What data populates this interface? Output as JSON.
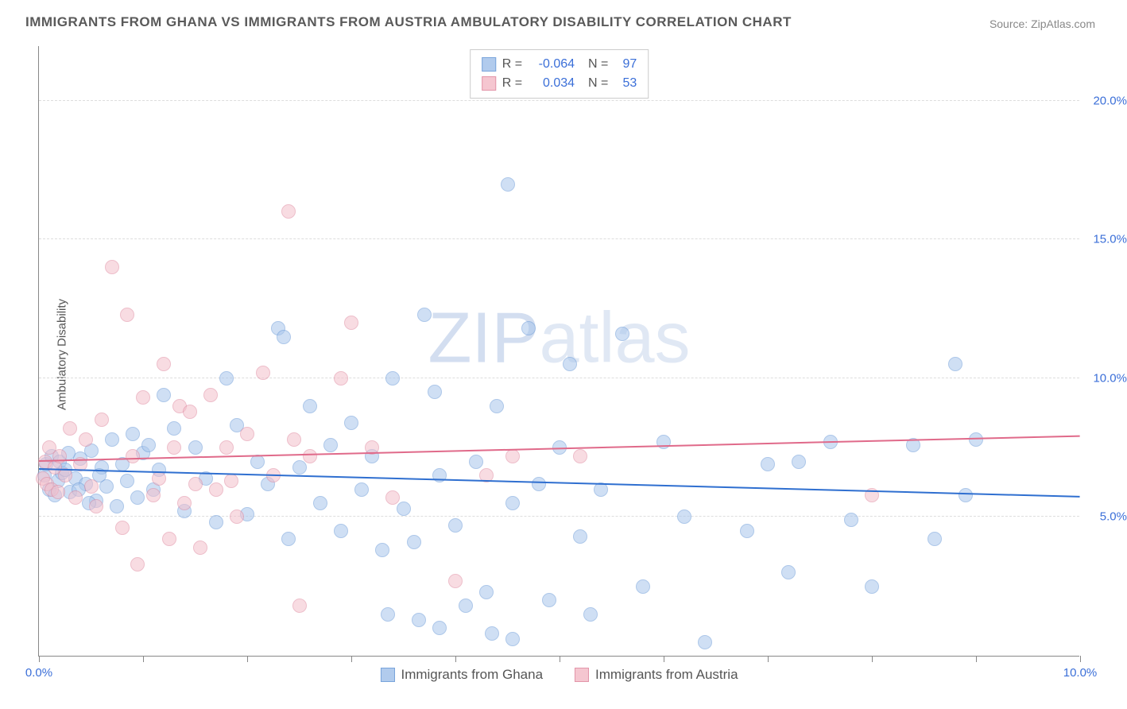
{
  "title": "IMMIGRANTS FROM GHANA VS IMMIGRANTS FROM AUSTRIA AMBULATORY DISABILITY CORRELATION CHART",
  "source": "Source: ZipAtlas.com",
  "watermark_bold": "ZIP",
  "watermark_thin": "atlas",
  "chart": {
    "type": "scatter",
    "ylabel": "Ambulatory Disability",
    "background_color": "#ffffff",
    "grid_color": "#dddddd",
    "xlim": [
      0,
      10
    ],
    "ylim": [
      0,
      22
    ],
    "y_ticks": [
      5,
      10,
      15,
      20
    ],
    "y_tick_labels": [
      "5.0%",
      "10.0%",
      "15.0%",
      "20.0%"
    ],
    "x_ticks": [
      0,
      1,
      2,
      3,
      4,
      5,
      6,
      7,
      8,
      9,
      10
    ],
    "x_tick_labels_shown": {
      "0": "0.0%",
      "10": "10.0%"
    },
    "marker_radius": 9,
    "marker_border_width": 1,
    "series": [
      {
        "name": "Immigrants from Ghana",
        "fill_color": "#a9c6ec",
        "border_color": "#6b9bd8",
        "fill_opacity": 0.55,
        "R": "-0.064",
        "N": "97",
        "trend": {
          "y_at_x0": 6.7,
          "y_at_x10": 5.7,
          "color": "#2f6fd0",
          "width": 2
        },
        "points": [
          [
            0.05,
            6.5
          ],
          [
            0.07,
            6.9
          ],
          [
            0.1,
            6.0
          ],
          [
            0.12,
            7.2
          ],
          [
            0.15,
            5.8
          ],
          [
            0.18,
            6.3
          ],
          [
            0.2,
            7.0
          ],
          [
            0.22,
            6.6
          ],
          [
            0.3,
            5.9
          ],
          [
            0.35,
            6.4
          ],
          [
            0.4,
            7.1
          ],
          [
            0.45,
            6.2
          ],
          [
            0.5,
            7.4
          ],
          [
            0.55,
            5.6
          ],
          [
            0.6,
            6.8
          ],
          [
            0.65,
            6.1
          ],
          [
            0.7,
            7.8
          ],
          [
            0.75,
            5.4
          ],
          [
            0.8,
            6.9
          ],
          [
            0.85,
            6.3
          ],
          [
            0.9,
            8.0
          ],
          [
            0.95,
            5.7
          ],
          [
            1.0,
            7.3
          ],
          [
            1.05,
            7.6
          ],
          [
            1.1,
            6.0
          ],
          [
            1.2,
            9.4
          ],
          [
            1.3,
            8.2
          ],
          [
            1.4,
            5.2
          ],
          [
            1.5,
            7.5
          ],
          [
            1.6,
            6.4
          ],
          [
            1.7,
            4.8
          ],
          [
            1.8,
            10.0
          ],
          [
            1.9,
            8.3
          ],
          [
            2.0,
            5.1
          ],
          [
            2.1,
            7.0
          ],
          [
            2.2,
            6.2
          ],
          [
            2.3,
            11.8
          ],
          [
            2.35,
            11.5
          ],
          [
            2.4,
            4.2
          ],
          [
            2.5,
            6.8
          ],
          [
            2.6,
            9.0
          ],
          [
            2.7,
            5.5
          ],
          [
            2.8,
            7.6
          ],
          [
            2.9,
            4.5
          ],
          [
            3.0,
            8.4
          ],
          [
            3.1,
            6.0
          ],
          [
            3.2,
            7.2
          ],
          [
            3.3,
            3.8
          ],
          [
            3.35,
            1.5
          ],
          [
            3.4,
            10.0
          ],
          [
            3.5,
            5.3
          ],
          [
            3.6,
            4.1
          ],
          [
            3.65,
            1.3
          ],
          [
            3.7,
            12.3
          ],
          [
            3.8,
            9.5
          ],
          [
            3.85,
            6.5
          ],
          [
            3.85,
            1.0
          ],
          [
            4.0,
            4.7
          ],
          [
            4.1,
            1.8
          ],
          [
            4.2,
            7.0
          ],
          [
            4.3,
            2.3
          ],
          [
            4.35,
            0.8
          ],
          [
            4.4,
            9.0
          ],
          [
            4.5,
            17.0
          ],
          [
            4.55,
            5.5
          ],
          [
            4.55,
            0.6
          ],
          [
            4.7,
            11.8
          ],
          [
            4.8,
            6.2
          ],
          [
            4.9,
            2.0
          ],
          [
            5.0,
            7.5
          ],
          [
            5.1,
            10.5
          ],
          [
            5.2,
            4.3
          ],
          [
            5.3,
            1.5
          ],
          [
            5.4,
            6.0
          ],
          [
            5.6,
            11.6
          ],
          [
            5.8,
            2.5
          ],
          [
            6.0,
            7.7
          ],
          [
            6.2,
            5.0
          ],
          [
            6.4,
            0.5
          ],
          [
            6.8,
            4.5
          ],
          [
            7.0,
            6.9
          ],
          [
            7.2,
            3.0
          ],
          [
            7.3,
            7.0
          ],
          [
            7.6,
            7.7
          ],
          [
            7.8,
            4.9
          ],
          [
            8.0,
            2.5
          ],
          [
            8.4,
            7.6
          ],
          [
            8.6,
            4.2
          ],
          [
            8.8,
            10.5
          ],
          [
            8.9,
            5.8
          ],
          [
            9.0,
            7.8
          ],
          [
            0.25,
            6.7
          ],
          [
            0.28,
            7.3
          ],
          [
            0.38,
            6.0
          ],
          [
            0.48,
            5.5
          ],
          [
            0.58,
            6.5
          ],
          [
            1.15,
            6.7
          ]
        ]
      },
      {
        "name": "Immigrants from Austria",
        "fill_color": "#f4c0cc",
        "border_color": "#e08aa0",
        "fill_opacity": 0.55,
        "R": "0.034",
        "N": "53",
        "trend": {
          "y_at_x0": 7.0,
          "y_at_x10": 7.9,
          "color": "#e06a8a",
          "width": 2
        },
        "points": [
          [
            0.04,
            6.4
          ],
          [
            0.06,
            7.0
          ],
          [
            0.08,
            6.2
          ],
          [
            0.1,
            7.5
          ],
          [
            0.12,
            6.0
          ],
          [
            0.15,
            6.8
          ],
          [
            0.18,
            5.9
          ],
          [
            0.2,
            7.2
          ],
          [
            0.25,
            6.5
          ],
          [
            0.3,
            8.2
          ],
          [
            0.35,
            5.7
          ],
          [
            0.4,
            6.9
          ],
          [
            0.45,
            7.8
          ],
          [
            0.5,
            6.1
          ],
          [
            0.55,
            5.4
          ],
          [
            0.6,
            8.5
          ],
          [
            0.7,
            14.0
          ],
          [
            0.8,
            4.6
          ],
          [
            0.85,
            12.3
          ],
          [
            0.9,
            7.2
          ],
          [
            0.95,
            3.3
          ],
          [
            1.0,
            9.3
          ],
          [
            1.1,
            5.8
          ],
          [
            1.15,
            6.4
          ],
          [
            1.2,
            10.5
          ],
          [
            1.25,
            4.2
          ],
          [
            1.3,
            7.5
          ],
          [
            1.35,
            9.0
          ],
          [
            1.4,
            5.5
          ],
          [
            1.45,
            8.8
          ],
          [
            1.5,
            6.2
          ],
          [
            1.55,
            3.9
          ],
          [
            1.65,
            9.4
          ],
          [
            1.7,
            6.0
          ],
          [
            1.8,
            7.5
          ],
          [
            1.85,
            6.3
          ],
          [
            1.9,
            5.0
          ],
          [
            2.0,
            8.0
          ],
          [
            2.15,
            10.2
          ],
          [
            2.25,
            6.5
          ],
          [
            2.4,
            16.0
          ],
          [
            2.45,
            7.8
          ],
          [
            2.5,
            1.8
          ],
          [
            2.6,
            7.2
          ],
          [
            2.9,
            10.0
          ],
          [
            3.0,
            12.0
          ],
          [
            3.2,
            7.5
          ],
          [
            3.4,
            5.7
          ],
          [
            4.0,
            2.7
          ],
          [
            4.3,
            6.5
          ],
          [
            4.55,
            7.2
          ],
          [
            5.2,
            7.2
          ],
          [
            8.0,
            5.8
          ]
        ]
      }
    ]
  },
  "legend": {
    "series1": "Immigrants from Ghana",
    "series2": "Immigrants from Austria"
  }
}
